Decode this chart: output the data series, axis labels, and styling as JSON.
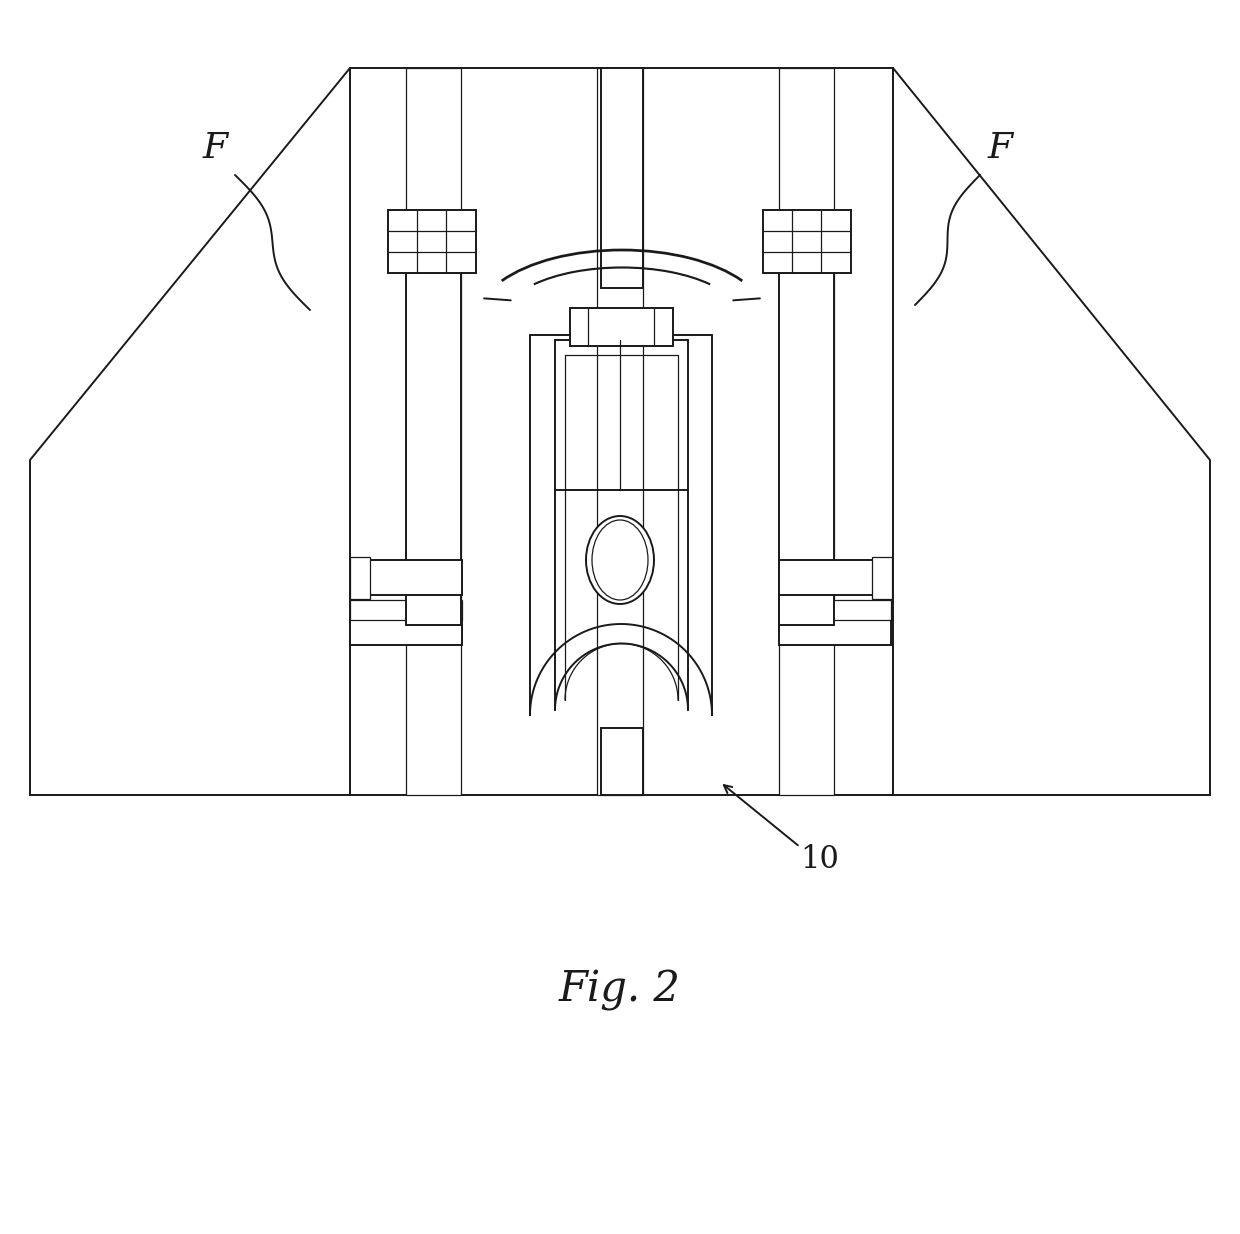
{
  "bg_color": "#ffffff",
  "line_color": "#1a1a1a",
  "lw_main": 1.4,
  "lw_thin": 0.9,
  "fig_width": 12.4,
  "fig_height": 12.34,
  "title": "Fig. 2"
}
